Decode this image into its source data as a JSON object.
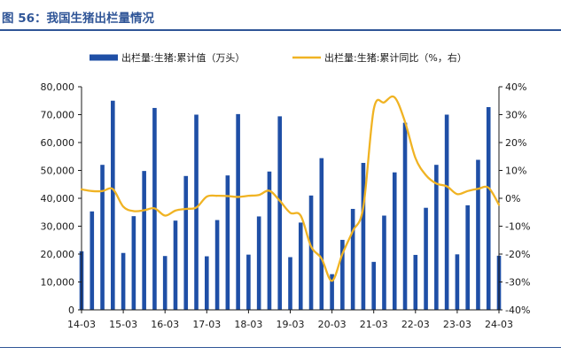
{
  "figure_title": "图 56：我国生猪出栏量情况",
  "colors": {
    "bar": "#1f4fa6",
    "line": "#f0b323",
    "title": "#2f5597",
    "axis": "#1a1a1a"
  },
  "chart_data": {
    "type": "bar+line",
    "title": "",
    "legend_position": "top",
    "grid": false,
    "x_tick_labels": [
      "14-03",
      "15-03",
      "16-03",
      "17-03",
      "18-03",
      "19-03",
      "20-03",
      "21-03",
      "22-03",
      "23-03",
      "24-03"
    ],
    "x_range": [
      "2014-03",
      "2024-03"
    ],
    "y_left": {
      "range": [
        0,
        80000
      ],
      "ticks": [
        "0",
        "10,000",
        "20,000",
        "30,000",
        "40,000",
        "50,000",
        "60,000",
        "70,000",
        "80,000"
      ]
    },
    "y_right": {
      "range": [
        -40,
        40
      ],
      "ticks": [
        "-40%",
        "-30%",
        "-20%",
        "-10%",
        "0%",
        "10%",
        "20%",
        "30%",
        "40%"
      ]
    },
    "series": [
      {
        "name": "出栏量:生猪:累计值（万头）",
        "type": "bar",
        "axis": "left",
        "points": [
          [
            "2014-03",
            21000
          ],
          [
            "2014-06",
            35300
          ],
          [
            "2014-09",
            52000
          ],
          [
            "2014-12",
            75000
          ],
          [
            "2015-03",
            20400
          ],
          [
            "2015-06",
            33600
          ],
          [
            "2015-09",
            49800
          ],
          [
            "2015-12",
            72400
          ],
          [
            "2016-03",
            19300
          ],
          [
            "2016-06",
            32000
          ],
          [
            "2016-09",
            48000
          ],
          [
            "2016-12",
            70000
          ],
          [
            "2017-03",
            19200
          ],
          [
            "2017-06",
            32200
          ],
          [
            "2017-09",
            48200
          ],
          [
            "2017-12",
            70200
          ],
          [
            "2018-03",
            19800
          ],
          [
            "2018-06",
            33500
          ],
          [
            "2018-09",
            49600
          ],
          [
            "2018-12",
            69400
          ],
          [
            "2019-03",
            18900
          ],
          [
            "2019-06",
            31300
          ],
          [
            "2019-09",
            41000
          ],
          [
            "2019-12",
            54400
          ],
          [
            "2020-03",
            12800
          ],
          [
            "2020-06",
            25100
          ],
          [
            "2020-09",
            36200
          ],
          [
            "2020-12",
            52700
          ],
          [
            "2021-03",
            17200
          ],
          [
            "2021-06",
            33800
          ],
          [
            "2021-09",
            49300
          ],
          [
            "2021-12",
            67100
          ],
          [
            "2022-03",
            19700
          ],
          [
            "2022-06",
            36600
          ],
          [
            "2022-09",
            52000
          ],
          [
            "2022-12",
            70000
          ],
          [
            "2023-03",
            19900
          ],
          [
            "2023-06",
            37500
          ],
          [
            "2023-09",
            53800
          ],
          [
            "2023-12",
            72700
          ],
          [
            "2024-03",
            19400
          ]
        ]
      },
      {
        "name": "出栏量:生猪:累计同比（%，右）",
        "type": "line",
        "axis": "right",
        "points": [
          [
            "2014-03",
            3.2
          ],
          [
            "2014-06",
            2.6
          ],
          [
            "2014-09",
            2.6
          ],
          [
            "2014-12",
            3.3
          ],
          [
            "2015-03",
            -3.0
          ],
          [
            "2015-06",
            -4.6
          ],
          [
            "2015-09",
            -4.3
          ],
          [
            "2015-12",
            -3.6
          ],
          [
            "2016-03",
            -6.2
          ],
          [
            "2016-06",
            -4.4
          ],
          [
            "2016-09",
            -3.8
          ],
          [
            "2016-12",
            -3.3
          ],
          [
            "2017-03",
            0.6
          ],
          [
            "2017-06",
            0.9
          ],
          [
            "2017-09",
            0.8
          ],
          [
            "2017-12",
            0.5
          ],
          [
            "2018-03",
            0.9
          ],
          [
            "2018-06",
            1.2
          ],
          [
            "2018-09",
            2.7
          ],
          [
            "2018-12",
            -0.9
          ],
          [
            "2019-03",
            -5.2
          ],
          [
            "2019-06",
            -6.2
          ],
          [
            "2019-09",
            -17.3
          ],
          [
            "2019-12",
            -21.6
          ],
          [
            "2020-03",
            -29.6
          ],
          [
            "2020-06",
            -19.9
          ],
          [
            "2020-09",
            -11.7
          ],
          [
            "2020-12",
            -3.2
          ],
          [
            "2021-03",
            31.9
          ],
          [
            "2021-06",
            34.4
          ],
          [
            "2021-09",
            36.2
          ],
          [
            "2021-12",
            27.4
          ],
          [
            "2022-03",
            14.4
          ],
          [
            "2022-06",
            8.3
          ],
          [
            "2022-09",
            5.3
          ],
          [
            "2022-12",
            4.3
          ],
          [
            "2023-03",
            1.5
          ],
          [
            "2023-06",
            2.6
          ],
          [
            "2023-09",
            3.4
          ],
          [
            "2023-12",
            3.8
          ],
          [
            "2024-03",
            -2.3
          ]
        ]
      }
    ]
  }
}
